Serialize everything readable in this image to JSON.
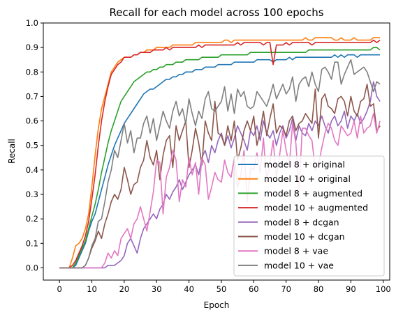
{
  "chart_data": {
    "type": "line",
    "title": "Recall for each model across 100 epochs",
    "xlabel": "Epoch",
    "ylabel": "Recall",
    "xlim": [
      -5,
      102
    ],
    "ylim": [
      -0.05,
      1.0
    ],
    "xticks": [
      "0",
      "10",
      "20",
      "30",
      "40",
      "50",
      "60",
      "70",
      "80",
      "90",
      "100"
    ],
    "yticks": [
      "0.0",
      "0.1",
      "0.2",
      "0.3",
      "0.4",
      "0.5",
      "0.6",
      "0.7",
      "0.8",
      "0.9",
      "1.0"
    ],
    "grid": false,
    "legend_position": "lower-right",
    "x": [
      0,
      1,
      2,
      3,
      4,
      5,
      6,
      7,
      8,
      9,
      10,
      11,
      12,
      13,
      14,
      15,
      16,
      17,
      18,
      19,
      20,
      21,
      22,
      23,
      24,
      25,
      26,
      27,
      28,
      29,
      30,
      31,
      32,
      33,
      34,
      35,
      36,
      37,
      38,
      39,
      40,
      41,
      42,
      43,
      44,
      45,
      46,
      47,
      48,
      49,
      50,
      51,
      52,
      53,
      54,
      55,
      56,
      57,
      58,
      59,
      60,
      61,
      62,
      63,
      64,
      65,
      66,
      67,
      68,
      69,
      70,
      71,
      72,
      73,
      74,
      75,
      76,
      77,
      78,
      79,
      80,
      81,
      82,
      83,
      84,
      85,
      86,
      87,
      88,
      89,
      90,
      91,
      92,
      93,
      94,
      95,
      96,
      97,
      98,
      99
    ],
    "series": [
      {
        "name": "model 8 + original",
        "color": "#1f77b4",
        "values": [
          0,
          0,
          0,
          0,
          0,
          0.01,
          0.04,
          0.07,
          0.1,
          0.15,
          0.19,
          0.22,
          0.27,
          0.32,
          0.37,
          0.42,
          0.46,
          0.5,
          0.53,
          0.56,
          0.59,
          0.61,
          0.63,
          0.65,
          0.67,
          0.69,
          0.71,
          0.72,
          0.73,
          0.73,
          0.74,
          0.75,
          0.76,
          0.77,
          0.77,
          0.78,
          0.78,
          0.79,
          0.79,
          0.8,
          0.8,
          0.8,
          0.81,
          0.81,
          0.81,
          0.82,
          0.82,
          0.82,
          0.82,
          0.83,
          0.83,
          0.83,
          0.83,
          0.83,
          0.84,
          0.84,
          0.84,
          0.84,
          0.84,
          0.84,
          0.84,
          0.85,
          0.85,
          0.85,
          0.85,
          0.85,
          0.84,
          0.85,
          0.85,
          0.85,
          0.85,
          0.86,
          0.85,
          0.86,
          0.86,
          0.86,
          0.86,
          0.86,
          0.86,
          0.86,
          0.86,
          0.86,
          0.86,
          0.86,
          0.86,
          0.87,
          0.86,
          0.87,
          0.86,
          0.87,
          0.87,
          0.87,
          0.86,
          0.87,
          0.87,
          0.87,
          0.87,
          0.87,
          0.87,
          0.87
        ]
      },
      {
        "name": "model 10 + original",
        "color": "#ff7f0e",
        "values": [
          0,
          0,
          0,
          0,
          0.04,
          0.09,
          0.1,
          0.12,
          0.16,
          0.22,
          0.33,
          0.46,
          0.57,
          0.65,
          0.7,
          0.75,
          0.8,
          0.82,
          0.84,
          0.85,
          0.86,
          0.86,
          0.86,
          0.87,
          0.87,
          0.88,
          0.88,
          0.89,
          0.89,
          0.89,
          0.9,
          0.9,
          0.9,
          0.9,
          0.9,
          0.91,
          0.91,
          0.91,
          0.91,
          0.91,
          0.91,
          0.91,
          0.92,
          0.92,
          0.92,
          0.92,
          0.92,
          0.92,
          0.92,
          0.92,
          0.92,
          0.93,
          0.93,
          0.92,
          0.93,
          0.93,
          0.93,
          0.93,
          0.93,
          0.93,
          0.93,
          0.93,
          0.93,
          0.93,
          0.93,
          0.93,
          0.93,
          0.93,
          0.93,
          0.93,
          0.93,
          0.93,
          0.93,
          0.93,
          0.93,
          0.93,
          0.94,
          0.93,
          0.93,
          0.94,
          0.94,
          0.94,
          0.94,
          0.94,
          0.94,
          0.93,
          0.93,
          0.94,
          0.93,
          0.93,
          0.93,
          0.94,
          0.93,
          0.93,
          0.93,
          0.93,
          0.93,
          0.94,
          0.94,
          0.94
        ]
      },
      {
        "name": "model 8 + augmented",
        "color": "#2ca02c",
        "values": [
          0,
          0,
          0,
          0,
          0,
          0.02,
          0.05,
          0.08,
          0.11,
          0.16,
          0.21,
          0.26,
          0.32,
          0.39,
          0.45,
          0.51,
          0.56,
          0.6,
          0.64,
          0.68,
          0.7,
          0.72,
          0.74,
          0.76,
          0.77,
          0.78,
          0.79,
          0.8,
          0.8,
          0.81,
          0.81,
          0.82,
          0.82,
          0.83,
          0.83,
          0.83,
          0.84,
          0.84,
          0.84,
          0.85,
          0.85,
          0.85,
          0.85,
          0.85,
          0.86,
          0.86,
          0.86,
          0.86,
          0.86,
          0.86,
          0.87,
          0.87,
          0.87,
          0.87,
          0.87,
          0.87,
          0.87,
          0.87,
          0.87,
          0.88,
          0.88,
          0.88,
          0.88,
          0.88,
          0.88,
          0.88,
          0.88,
          0.88,
          0.88,
          0.88,
          0.88,
          0.88,
          0.88,
          0.88,
          0.88,
          0.88,
          0.88,
          0.89,
          0.89,
          0.89,
          0.89,
          0.89,
          0.89,
          0.89,
          0.89,
          0.89,
          0.89,
          0.89,
          0.89,
          0.89,
          0.89,
          0.89,
          0.89,
          0.89,
          0.89,
          0.89,
          0.89,
          0.9,
          0.9,
          0.89
        ]
      },
      {
        "name": "model 10 + augmented",
        "color": "#d62728",
        "values": [
          0,
          0,
          0,
          0,
          0.01,
          0.03,
          0.06,
          0.09,
          0.13,
          0.19,
          0.28,
          0.38,
          0.5,
          0.6,
          0.68,
          0.74,
          0.79,
          0.81,
          0.83,
          0.84,
          0.86,
          0.86,
          0.86,
          0.87,
          0.87,
          0.88,
          0.88,
          0.88,
          0.88,
          0.89,
          0.89,
          0.89,
          0.89,
          0.9,
          0.89,
          0.9,
          0.9,
          0.9,
          0.9,
          0.9,
          0.9,
          0.9,
          0.9,
          0.91,
          0.9,
          0.91,
          0.91,
          0.91,
          0.91,
          0.91,
          0.91,
          0.91,
          0.91,
          0.91,
          0.91,
          0.92,
          0.91,
          0.92,
          0.92,
          0.92,
          0.92,
          0.92,
          0.92,
          0.91,
          0.92,
          0.92,
          0.83,
          0.91,
          0.91,
          0.91,
          0.92,
          0.91,
          0.92,
          0.92,
          0.92,
          0.92,
          0.92,
          0.92,
          0.91,
          0.92,
          0.92,
          0.92,
          0.92,
          0.92,
          0.92,
          0.92,
          0.92,
          0.92,
          0.92,
          0.92,
          0.92,
          0.92,
          0.92,
          0.92,
          0.92,
          0.92,
          0.92,
          0.93,
          0.92,
          0.93
        ]
      },
      {
        "name": "model 8 + dcgan",
        "color": "#9467bd",
        "values": [
          0,
          0,
          0,
          0,
          0,
          0,
          0,
          0,
          0,
          0,
          0,
          0,
          0,
          0,
          0,
          0.01,
          0.01,
          0.01,
          0.02,
          0.03,
          0.05,
          0.1,
          0.12,
          0.09,
          0.06,
          0.12,
          0.16,
          0.18,
          0.2,
          0.22,
          0.2,
          0.24,
          0.26,
          0.3,
          0.28,
          0.31,
          0.33,
          0.36,
          0.32,
          0.35,
          0.38,
          0.4,
          0.42,
          0.38,
          0.45,
          0.48,
          0.43,
          0.5,
          0.47,
          0.52,
          0.55,
          0.5,
          0.54,
          0.49,
          0.53,
          0.58,
          0.55,
          0.52,
          0.48,
          0.56,
          0.54,
          0.58,
          0.52,
          0.6,
          0.55,
          0.53,
          0.56,
          0.5,
          0.55,
          0.58,
          0.53,
          0.56,
          0.61,
          0.52,
          0.58,
          0.55,
          0.54,
          0.59,
          0.56,
          0.6,
          0.58,
          0.62,
          0.58,
          0.55,
          0.6,
          0.62,
          0.58,
          0.6,
          0.64,
          0.57,
          0.62,
          0.6,
          0.63,
          0.59,
          0.61,
          0.64,
          0.68,
          0.76,
          0.7,
          0.68
        ]
      },
      {
        "name": "model 10 + dcgan",
        "color": "#8c564b",
        "values": [
          0,
          0,
          0,
          0,
          0,
          0,
          0,
          0,
          0.01,
          0.04,
          0.08,
          0.11,
          0.15,
          0.12,
          0.18,
          0.22,
          0.27,
          0.3,
          0.28,
          0.32,
          0.41,
          0.36,
          0.3,
          0.34,
          0.35,
          0.41,
          0.44,
          0.52,
          0.45,
          0.42,
          0.48,
          0.36,
          0.46,
          0.52,
          0.54,
          0.41,
          0.58,
          0.52,
          0.56,
          0.6,
          0.41,
          0.48,
          0.57,
          0.51,
          0.42,
          0.6,
          0.55,
          0.52,
          0.68,
          0.55,
          0.54,
          0.5,
          0.58,
          0.52,
          0.6,
          0.44,
          0.49,
          0.56,
          0.6,
          0.56,
          0.62,
          0.5,
          0.56,
          0.64,
          0.54,
          0.61,
          0.67,
          0.55,
          0.58,
          0.57,
          0.54,
          0.6,
          0.62,
          0.56,
          0.59,
          0.6,
          0.63,
          0.61,
          0.59,
          0.73,
          0.53,
          0.69,
          0.71,
          0.66,
          0.65,
          0.63,
          0.69,
          0.7,
          0.68,
          0.62,
          0.7,
          0.64,
          0.62,
          0.68,
          0.69,
          0.75,
          0.66,
          0.67,
          0.56,
          0.58
        ]
      },
      {
        "name": "model 8 + vae",
        "color": "#e377c2",
        "values": [
          0,
          0,
          0,
          0,
          0,
          0,
          0,
          0,
          0,
          0,
          0,
          0,
          0,
          0,
          0.02,
          0.06,
          0.04,
          0.07,
          0.05,
          0.12,
          0.14,
          0.16,
          0.12,
          0.18,
          0.2,
          0.25,
          0.2,
          0.15,
          0.23,
          0.31,
          0.44,
          0.43,
          0.22,
          0.37,
          0.41,
          0.48,
          0.44,
          0.27,
          0.36,
          0.33,
          0.45,
          0.38,
          0.43,
          0.3,
          0.45,
          0.42,
          0.28,
          0.33,
          0.39,
          0.36,
          0.35,
          0.44,
          0.39,
          0.37,
          0.45,
          0.33,
          0.38,
          0.48,
          0.27,
          0.41,
          0.4,
          0.47,
          0.39,
          0.53,
          0.35,
          0.43,
          0.52,
          0.37,
          0.46,
          0.56,
          0.48,
          0.42,
          0.59,
          0.51,
          0.32,
          0.57,
          0.57,
          0.54,
          0.52,
          0.4,
          0.42,
          0.49,
          0.55,
          0.59,
          0.57,
          0.52,
          0.5,
          0.58,
          0.56,
          0.54,
          0.55,
          0.6,
          0.53,
          0.62,
          0.55,
          0.57,
          0.58,
          0.63,
          0.55,
          0.6
        ]
      },
      {
        "name": "model 10 + vae",
        "color": "#7f7f7f",
        "values": [
          0,
          0,
          0,
          0,
          0,
          0,
          0,
          0,
          0.01,
          0.04,
          0.09,
          0.12,
          0.19,
          0.2,
          0.27,
          0.35,
          0.4,
          0.48,
          0.45,
          0.52,
          0.59,
          0.51,
          0.56,
          0.47,
          0.53,
          0.53,
          0.59,
          0.62,
          0.55,
          0.61,
          0.52,
          0.58,
          0.64,
          0.6,
          0.57,
          0.64,
          0.68,
          0.62,
          0.65,
          0.59,
          0.69,
          0.63,
          0.58,
          0.64,
          0.61,
          0.69,
          0.72,
          0.65,
          0.64,
          0.66,
          0.68,
          0.74,
          0.64,
          0.71,
          0.63,
          0.73,
          0.7,
          0.72,
          0.66,
          0.65,
          0.66,
          0.72,
          0.7,
          0.68,
          0.66,
          0.7,
          0.75,
          0.69,
          0.72,
          0.75,
          0.71,
          0.73,
          0.78,
          0.68,
          0.75,
          0.77,
          0.78,
          0.74,
          0.8,
          0.75,
          0.72,
          0.81,
          0.82,
          0.8,
          0.77,
          0.84,
          0.84,
          0.75,
          0.79,
          0.82,
          0.85,
          0.79,
          0.8,
          0.81,
          0.82,
          0.8,
          0.76,
          0.72,
          0.76,
          0.75
        ]
      }
    ]
  }
}
